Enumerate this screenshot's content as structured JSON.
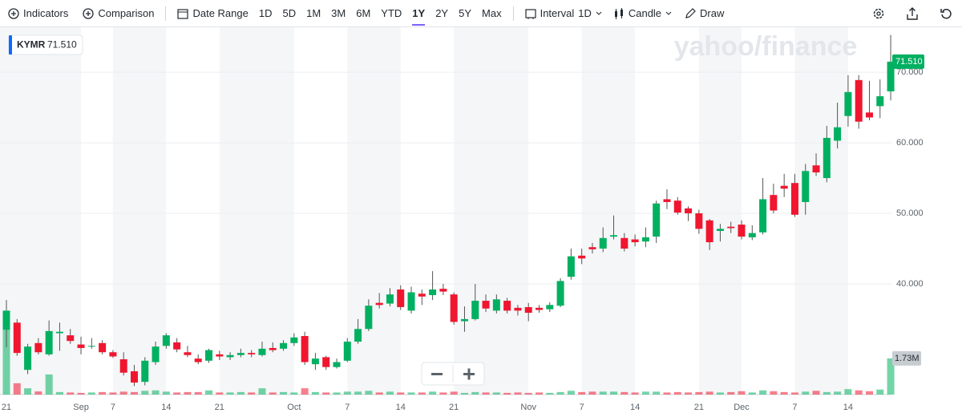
{
  "toolbar": {
    "indicators": "Indicators",
    "comparison": "Comparison",
    "date_range": "Date Range",
    "ranges": [
      {
        "label": "1D"
      },
      {
        "label": "5D"
      },
      {
        "label": "1M"
      },
      {
        "label": "3M"
      },
      {
        "label": "6M"
      },
      {
        "label": "YTD"
      },
      {
        "label": "1Y",
        "active": true
      },
      {
        "label": "2Y"
      },
      {
        "label": "5Y"
      },
      {
        "label": "Max"
      }
    ],
    "interval": "Interval",
    "interval_value": "1D",
    "chart_style": "Candle",
    "draw": "Draw"
  },
  "chart_data": {
    "type": "candlestick",
    "symbol": "KYMR",
    "watermark": "yahoo/finance",
    "categories": [
      "21",
      null,
      null,
      null,
      null,
      null,
      null,
      "Sep",
      null,
      null,
      "7",
      null,
      null,
      null,
      null,
      "14",
      null,
      null,
      null,
      null,
      "21",
      null,
      null,
      null,
      null,
      null,
      null,
      "Oct",
      null,
      null,
      null,
      null,
      "7",
      null,
      null,
      null,
      null,
      "14",
      null,
      null,
      null,
      null,
      "21",
      null,
      null,
      null,
      null,
      null,
      null,
      "Nov",
      null,
      null,
      null,
      null,
      "7",
      null,
      null,
      null,
      null,
      "14",
      null,
      null,
      null,
      null,
      null,
      "21",
      null,
      null,
      null,
      "Dec",
      null,
      null,
      null,
      null,
      "7",
      null,
      null,
      null,
      null,
      "14",
      null,
      null,
      null,
      null
    ],
    "open": [
      33.5,
      34.5,
      27.8,
      31.6,
      30,
      33,
      32.7,
      31.4,
      31.1,
      31.6,
      30.3,
      29.3,
      27.6,
      26.1,
      28.9,
      31.2,
      31.7,
      30.3,
      29.4,
      29.1,
      30,
      29.6,
      29.9,
      30.2,
      29.9,
      30.9,
      30.8,
      31.6,
      32.6,
      28.6,
      29.6,
      28.2,
      29.1,
      31.8,
      33.6,
      37.3,
      37.2,
      39.2,
      36.2,
      38.6,
      38.4,
      39.3,
      38.5,
      34.7,
      35,
      37.6,
      36.2,
      37.6,
      36.6,
      36.7,
      36.6,
      36.4,
      36.9,
      41,
      44,
      45.2,
      45,
      46.7,
      46.5,
      46.3,
      46,
      46.7,
      52,
      51.8,
      50.7,
      50,
      49,
      47.5,
      48.1,
      48.4,
      46.6,
      47.3,
      52.6,
      53.9,
      54.3,
      51.6,
      56.8,
      55,
      60.3,
      63.8,
      68.9,
      64.3,
      65.2,
      67.3
    ],
    "high": [
      37.7,
      35,
      31.5,
      32.3,
      34.8,
      34.5,
      33.6,
      32.5,
      32.3,
      32,
      30.6,
      30.3,
      28.5,
      29.6,
      31.8,
      33,
      32.3,
      31.2,
      30,
      30.8,
      30.5,
      30.3,
      30.8,
      30.6,
      31.8,
      31.7,
      32,
      33,
      33.2,
      30.2,
      29.8,
      29.4,
      32.3,
      35,
      37.8,
      38.7,
      39.4,
      39.8,
      39.6,
      39.2,
      41.8,
      40,
      38.8,
      36.8,
      40,
      38.5,
      38.5,
      38,
      37,
      37.3,
      37,
      37.4,
      40.8,
      45,
      45,
      45.8,
      48,
      49.7,
      47.2,
      47,
      48,
      51.8,
      53.4,
      52.3,
      51,
      50.5,
      49.2,
      48.5,
      48.8,
      49,
      48.3,
      55,
      54.2,
      55.6,
      55.6,
      57,
      58.5,
      62.4,
      65.7,
      69.6,
      69.6,
      68.8,
      69,
      75.3
    ],
    "low": [
      31,
      29.8,
      27.2,
      30,
      29.8,
      30.5,
      31.5,
      30,
      30.8,
      30,
      29.5,
      27,
      25.5,
      25.6,
      28.5,
      30.8,
      30.3,
      29.6,
      28.6,
      28.8,
      29.2,
      29.2,
      29.6,
      29.6,
      29.7,
      30.3,
      30.5,
      31.2,
      28.5,
      27.8,
      27.8,
      28,
      28.9,
      31.5,
      33.3,
      36.5,
      36.8,
      36.3,
      35.8,
      37,
      37.7,
      38.4,
      34.2,
      33.2,
      34.8,
      36,
      35.8,
      35.8,
      35.5,
      34.7,
      35.9,
      36,
      36.7,
      40.6,
      42.8,
      44.3,
      44.5,
      46.3,
      44.6,
      45.3,
      45.2,
      45.8,
      50.6,
      49.8,
      48.9,
      47.1,
      44.8,
      46,
      47.2,
      46.3,
      46.2,
      47,
      50,
      52.3,
      49.5,
      49.8,
      55.3,
      54.4,
      59.2,
      62.3,
      62,
      63.2,
      63.5,
      66
    ],
    "close": [
      36.2,
      30.2,
      31.1,
      30.3,
      33.3,
      33.2,
      31.9,
      30.9,
      31.2,
      30.3,
      29.7,
      27.4,
      26,
      29.1,
      31.1,
      32.7,
      30.7,
      29.9,
      28.9,
      30.6,
      29.7,
      29.9,
      30.2,
      30,
      30.8,
      30.6,
      31.6,
      32.4,
      28.9,
      29.4,
      28.2,
      28.9,
      31.8,
      33.6,
      36.9,
      37,
      38.5,
      36.7,
      38.8,
      38.2,
      39.2,
      38.9,
      34.6,
      35,
      37.6,
      36.5,
      37.8,
      36.2,
      36.2,
      35.9,
      36.3,
      37,
      40.4,
      43.9,
      43.6,
      44.9,
      46.5,
      46.9,
      45,
      45.9,
      46.6,
      51.4,
      51.6,
      50.1,
      50,
      47.8,
      45.9,
      47.8,
      47.9,
      46.7,
      47.2,
      52,
      50.4,
      53.5,
      49.8,
      56,
      55.8,
      60.7,
      62.2,
      67.2,
      63,
      63.6,
      66.6,
      71.51
    ],
    "volume": [
      4.0,
      0.54,
      0.3,
      0.15,
      0.96,
      0.12,
      0.1,
      0.08,
      0.1,
      0.12,
      0.1,
      0.14,
      0.12,
      0.18,
      0.2,
      0.14,
      0.1,
      0.12,
      0.12,
      0.2,
      0.1,
      0.1,
      0.12,
      0.1,
      0.3,
      0.1,
      0.12,
      0.1,
      0.3,
      0.12,
      0.1,
      0.1,
      0.14,
      0.14,
      0.18,
      0.1,
      0.14,
      0.1,
      0.1,
      0.1,
      0.14,
      0.1,
      0.14,
      0.08,
      0.12,
      0.1,
      0.1,
      0.08,
      0.1,
      0.08,
      0.1,
      0.08,
      0.12,
      0.18,
      0.12,
      0.14,
      0.14,
      0.14,
      0.12,
      0.1,
      0.14,
      0.14,
      0.1,
      0.12,
      0.1,
      0.12,
      0.14,
      0.1,
      0.12,
      0.16,
      0.1,
      0.2,
      0.16,
      0.12,
      0.1,
      0.14,
      0.18,
      0.12,
      0.14,
      0.26,
      0.2,
      0.16,
      0.24,
      1.73
    ],
    "up_color": "#00b061",
    "down_color": "#f0162f",
    "ylim": [
      24.3,
      76.5
    ],
    "yticks": [
      {
        "value": 40,
        "label": "40.000"
      },
      {
        "value": 50,
        "label": "50.000"
      },
      {
        "value": 60,
        "label": "60.000"
      },
      {
        "value": 70,
        "label": "70.000"
      }
    ],
    "y2lim": [
      0,
      17.6
    ],
    "last_close_label": "71.510",
    "last_volume_label": "1.73M",
    "grid": true
  }
}
